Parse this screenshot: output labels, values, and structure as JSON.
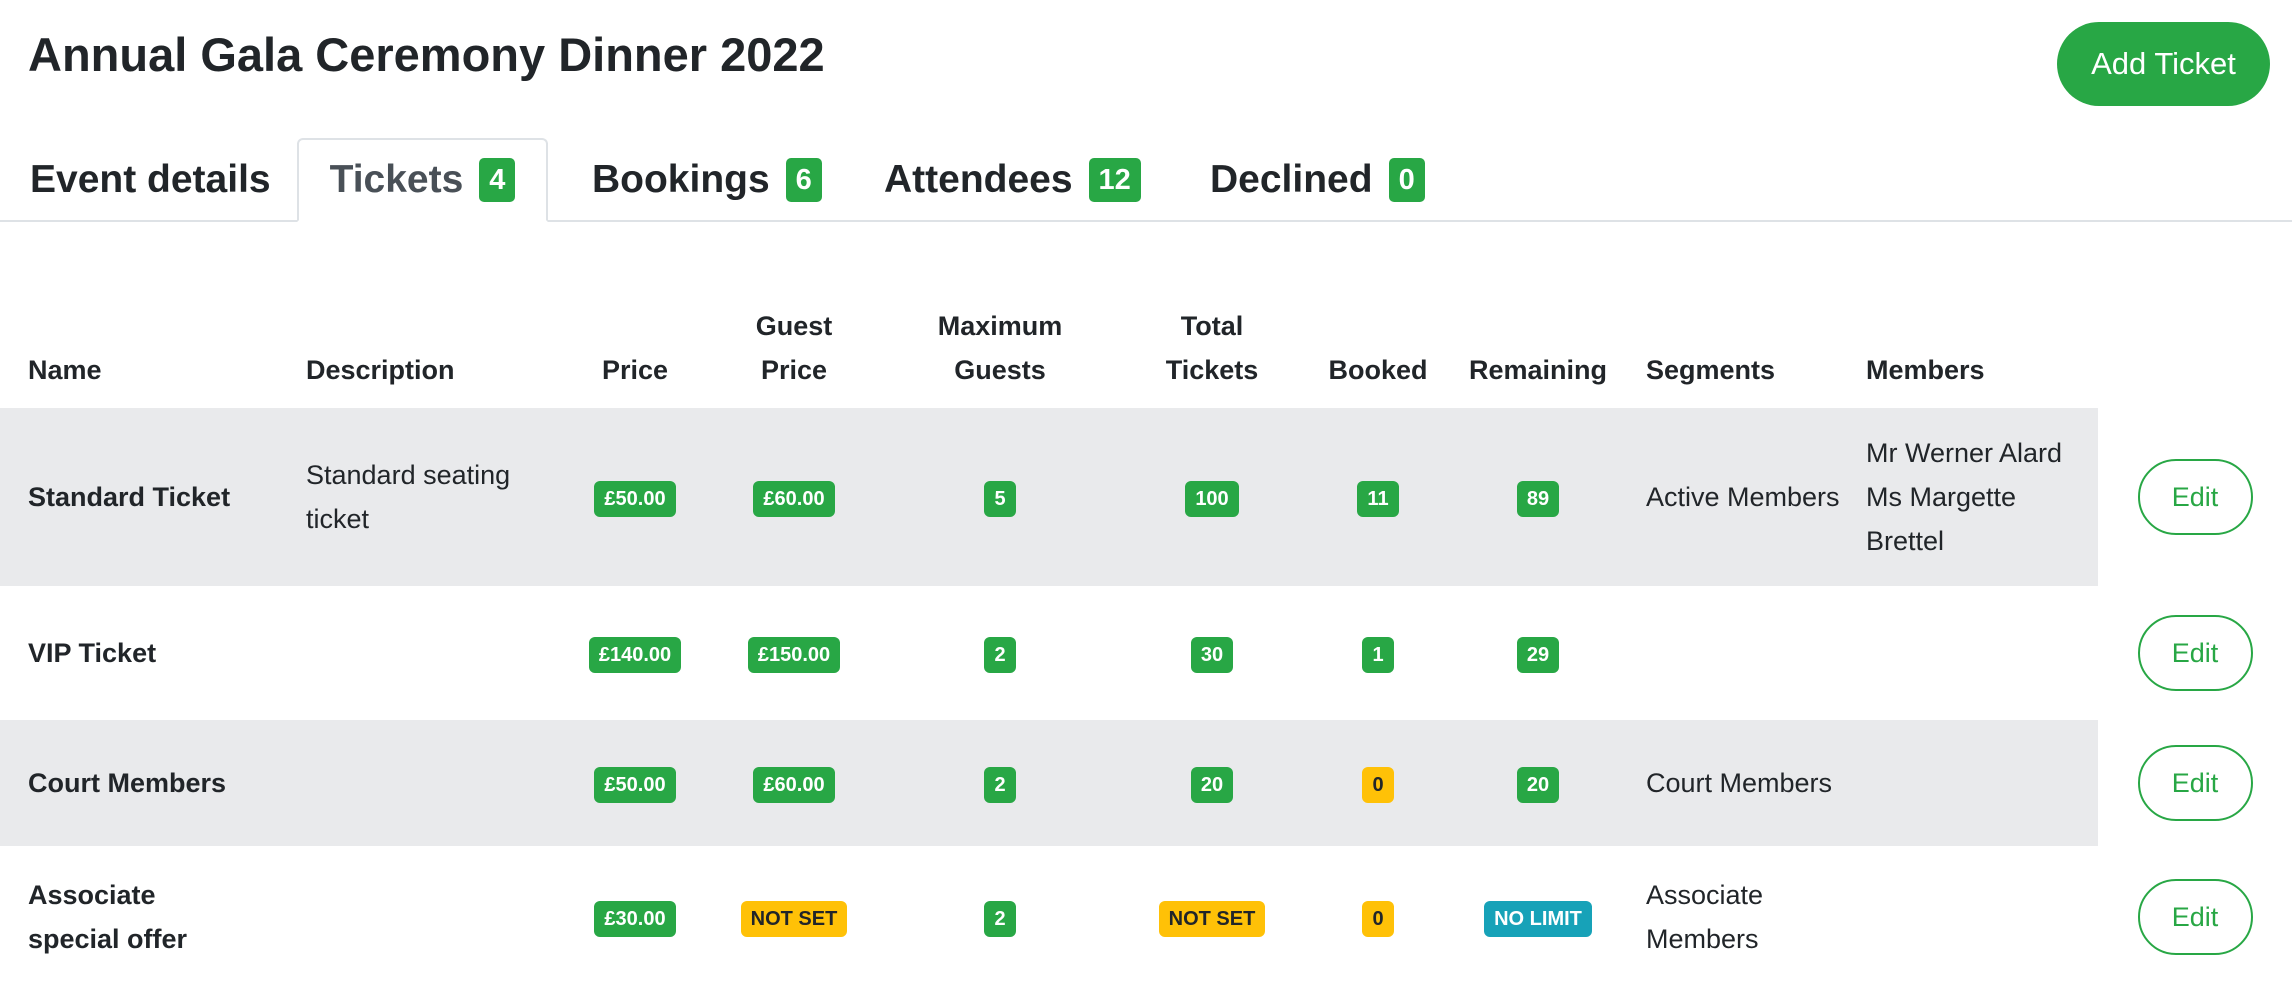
{
  "page": {
    "title": "Annual Gala Ceremony Dinner 2022",
    "add_ticket_label": "Add Ticket"
  },
  "tabs": [
    {
      "label": "Event details",
      "count": null,
      "active": false
    },
    {
      "label": "Tickets",
      "count": "4",
      "active": true
    },
    {
      "label": "Bookings",
      "count": "6",
      "active": false
    },
    {
      "label": "Attendees",
      "count": "12",
      "active": false
    },
    {
      "label": "Declined",
      "count": "0",
      "active": false
    }
  ],
  "table": {
    "headers": {
      "name": "Name",
      "description": "Description",
      "price": "Price",
      "guest_price": [
        "Guest",
        "Price"
      ],
      "maximum_guests": [
        "Maximum",
        "Guests"
      ],
      "total_tickets": [
        "Total",
        "Tickets"
      ],
      "booked": "Booked",
      "remaining": "Remaining",
      "segments": "Segments",
      "members": "Members"
    },
    "rows": [
      {
        "name": "Standard Ticket",
        "description": "Standard seating ticket",
        "price": "£50.00",
        "guest_price": "£60.00",
        "guest_price_status": "success",
        "maximum_guests": "5",
        "total_tickets": "100",
        "total_tickets_status": "success",
        "booked": "11",
        "booked_status": "success",
        "remaining": "89",
        "remaining_status": "success",
        "segments": "Active Members",
        "members": [
          "Mr Werner Alard",
          "Ms Margette Brettel"
        ],
        "edit_label": "Edit"
      },
      {
        "name": "VIP Ticket",
        "description": "",
        "price": "£140.00",
        "guest_price": "£150.00",
        "guest_price_status": "success",
        "maximum_guests": "2",
        "total_tickets": "30",
        "total_tickets_status": "success",
        "booked": "1",
        "booked_status": "success",
        "remaining": "29",
        "remaining_status": "success",
        "segments": "",
        "members": [],
        "edit_label": "Edit"
      },
      {
        "name": "Court Members",
        "description": "",
        "price": "£50.00",
        "guest_price": "£60.00",
        "guest_price_status": "success",
        "maximum_guests": "2",
        "total_tickets": "20",
        "total_tickets_status": "success",
        "booked": "0",
        "booked_status": "warning",
        "remaining": "20",
        "remaining_status": "success",
        "segments": "Court Members",
        "members": [],
        "edit_label": "Edit"
      },
      {
        "name": "Associate special offer",
        "description": "",
        "price": "£30.00",
        "guest_price": "NOT SET",
        "guest_price_status": "warning",
        "maximum_guests": "2",
        "total_tickets": "NOT SET",
        "total_tickets_status": "warning",
        "booked": "0",
        "booked_status": "warning",
        "remaining": "NO LIMIT",
        "remaining_status": "info",
        "segments": "Associate Members",
        "members": [],
        "edit_label": "Edit"
      }
    ]
  },
  "colors": {
    "success": "#28a745",
    "warning": "#ffc107",
    "info": "#17a2b8",
    "row_stripe": "#e9eaec"
  }
}
